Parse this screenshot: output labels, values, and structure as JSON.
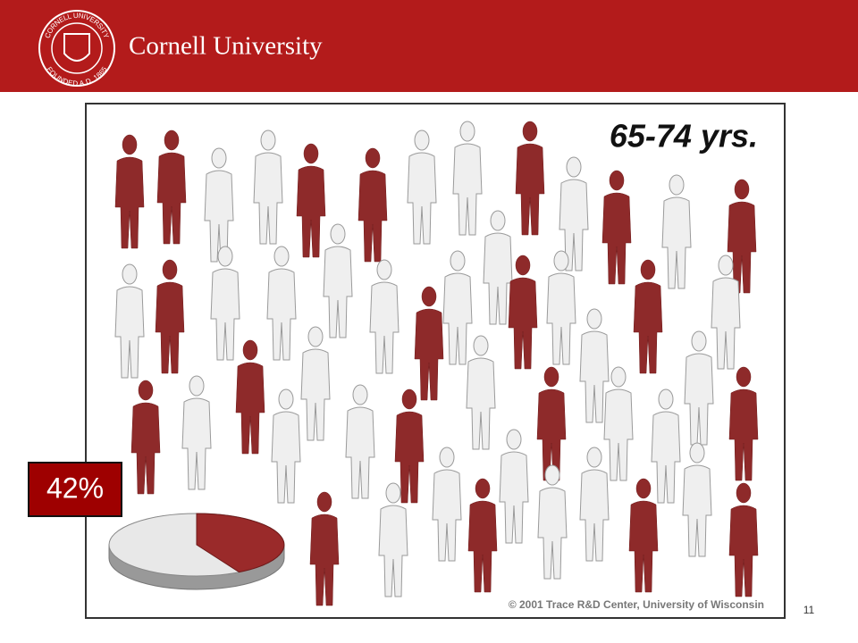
{
  "header": {
    "title": "Cornell University",
    "seal_top": "CORNELL UNIVERSITY",
    "seal_bottom": "FOUNDED A.D. 1865"
  },
  "figure": {
    "title": "65-74 yrs.",
    "highlight": "42%",
    "credit": "© 2001 Trace R&D Center, University of Wisconsin"
  },
  "page_number": "11"
}
